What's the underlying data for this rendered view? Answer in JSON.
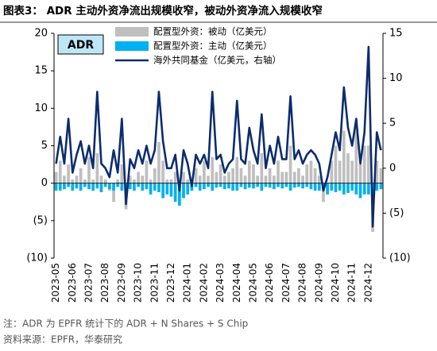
{
  "chart_data": {
    "type": "bar",
    "title": "图表3： ADR 主动外资净流出规模收窄，被动外资净流入规模收窄",
    "annotation": "ADR",
    "categories": [
      "2023-05",
      null,
      null,
      null,
      "2023-06",
      null,
      null,
      null,
      "2023-07",
      null,
      null,
      null,
      "2023-08",
      null,
      null,
      null,
      "2023-09",
      null,
      null,
      null,
      "2023-10",
      null,
      null,
      null,
      "2023-11",
      null,
      null,
      null,
      "2023-12",
      null,
      null,
      null,
      "2024-01",
      null,
      null,
      null,
      "2024-02",
      null,
      null,
      null,
      "2024-03",
      null,
      null,
      null,
      "2024-04",
      null,
      null,
      null,
      "2024-05",
      null,
      null,
      null,
      "2024-06",
      null,
      null,
      null,
      "2024-07",
      null,
      null,
      null,
      "2024-08",
      null,
      null,
      null,
      "2024-09",
      null,
      null,
      null,
      "2024-10",
      null,
      null,
      null,
      "2024-11",
      null,
      null,
      null,
      "2024-12",
      null,
      null,
      null
    ],
    "series": [
      {
        "name": "配置型外资：被动（亿美元）",
        "color": "#bfbfbf",
        "type": "bar",
        "values": [
          1.5,
          3,
          1,
          2.5,
          0.5,
          1,
          2,
          0.5,
          3.5,
          0.5,
          4,
          1,
          0.5,
          -1,
          -2.5,
          0.5,
          2.5,
          -3.5,
          1,
          0.5,
          1.5,
          1,
          3,
          0.5,
          2,
          5.5,
          3,
          0.5,
          0.5,
          1.5,
          -2,
          1.5,
          0.5,
          -1,
          2,
          1,
          3,
          1,
          3.5,
          1.5,
          2.5,
          1,
          1.5,
          2,
          3.5,
          2,
          1,
          3,
          2.5,
          1,
          4,
          1,
          2,
          1,
          3,
          1.5,
          1.5,
          5,
          1.5,
          2,
          1,
          2.5,
          3,
          2,
          1,
          -2.5,
          -1,
          3,
          5,
          3,
          7,
          4,
          3,
          7.5,
          2.5,
          5,
          5,
          -6.5,
          3,
          2
        ]
      },
      {
        "name": "配置型外资：主动（亿美元）",
        "color": "#00b0f0",
        "type": "bar",
        "values": [
          -1,
          -1,
          -0.8,
          -0.5,
          -1,
          -0.7,
          -1,
          -0.5,
          -0.8,
          -1,
          -0.7,
          -1.2,
          -0.5,
          -0.8,
          -1,
          -0.5,
          -1,
          -1.2,
          -0.8,
          -1,
          -0.5,
          -1,
          -0.8,
          -1.5,
          -1,
          -1.2,
          -2,
          -1.5,
          -1.8,
          -2.5,
          -3,
          -2,
          -1.5,
          -1,
          -0.5,
          -1,
          -0.8,
          -0.5,
          -1,
          -0.6,
          -0.5,
          -0.8,
          -0.7,
          -1,
          -1,
          -0.5,
          -0.8,
          -0.6,
          -0.7,
          -0.5,
          -1,
          -0.5,
          -0.6,
          -0.8,
          -0.5,
          -0.7,
          -0.5,
          -1,
          -0.6,
          -0.5,
          -0.7,
          -0.5,
          -0.8,
          -1,
          -1,
          -0.8,
          -1.5,
          -1,
          -1.2,
          -1,
          -1.5,
          -1.3,
          -1,
          -1.5,
          -2,
          -1.5,
          -1.5,
          -2,
          -1,
          -0.8
        ]
      },
      {
        "name": "海外共同基金（亿美元，右轴）",
        "color": "#0c2c6e",
        "type": "line",
        "axis": "y2",
        "values": [
          0.5,
          3.5,
          0.5,
          5.5,
          -0.5,
          1.5,
          3,
          0.5,
          2.5,
          0,
          8.5,
          0.5,
          0,
          -1,
          2,
          -0.5,
          5.5,
          -4,
          1,
          0,
          2,
          0.5,
          2.5,
          0.5,
          2,
          8.5,
          3,
          0,
          0,
          1.5,
          -2.5,
          2,
          0.5,
          -2,
          1.5,
          0.5,
          1.5,
          0,
          8.5,
          1,
          1.5,
          -0.5,
          0.5,
          1,
          7.5,
          1,
          0.5,
          4.5,
          2,
          0.5,
          6,
          0,
          2.5,
          0.5,
          3.5,
          1,
          1,
          8,
          1,
          2,
          0.5,
          1.5,
          2,
          1.5,
          0.5,
          -2.5,
          -1,
          1.5,
          4,
          2,
          9,
          4.5,
          2.5,
          5.5,
          0.5,
          4,
          13.5,
          -6.5,
          4,
          2
        ]
      }
    ],
    "ylim": [
      -10,
      20
    ],
    "yticks": [
      {
        "value": -10,
        "label": "(10)"
      },
      {
        "value": -5,
        "label": "(5)"
      },
      0,
      5,
      10,
      15,
      20
    ],
    "y2lim": [
      -10,
      15
    ],
    "y2ticks": [
      {
        "value": -10,
        "label": "(10)"
      },
      {
        "value": -5,
        "label": "(5)"
      },
      0,
      5,
      10,
      15
    ],
    "legend": "top-left"
  },
  "notes": [
    "注：ADR 为 EPFR 统计下的 ADR + N Shares + S Chip",
    "资料来源：EPFR，华泰研究"
  ]
}
